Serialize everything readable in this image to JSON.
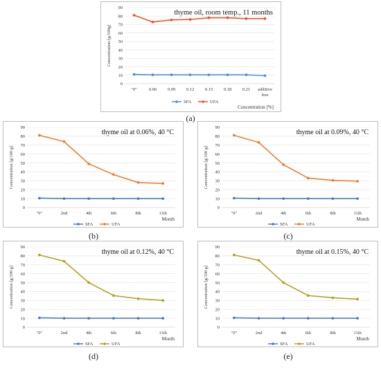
{
  "captions": [
    "(a)",
    "(b)",
    "(c)",
    "(d)",
    "(e)"
  ],
  "chart_data": [
    {
      "type": "line",
      "title": "thyme oil, room temp., 11 months",
      "ylabel": "Concentration [g/100g]",
      "xlabel": "Concentration [%]",
      "ylim": [
        0,
        90
      ],
      "yticks": [
        "0",
        "10",
        "20",
        "30",
        "40",
        "50",
        "60",
        "70",
        "80",
        "90"
      ],
      "categories": [
        "\"0\"",
        "0.06",
        "0.09",
        "0.12",
        "0.15",
        "0.18",
        "0.21",
        "additive free"
      ],
      "series": [
        {
          "name": "SFA",
          "color": "#4a90d9",
          "values": [
            11,
            10.5,
            10.5,
            10.5,
            10.5,
            10.5,
            10.5,
            9.5
          ]
        },
        {
          "name": "UFA",
          "color": "#e8542a",
          "values": [
            81,
            73,
            75.5,
            76,
            78,
            78,
            77,
            77
          ]
        }
      ],
      "legend": "bottom"
    },
    {
      "type": "line",
      "title": "thyme oil at 0.06%, 40 °C",
      "ylabel": "Concentration [g/100 g]",
      "xlabel": "Month",
      "ylim": [
        0,
        90
      ],
      "yticks": [
        "0",
        "10",
        "20",
        "30",
        "40",
        "50",
        "60",
        "70",
        "80",
        "90"
      ],
      "categories": [
        "\"0\"",
        "2nd",
        "4th",
        "6th",
        "8th",
        "11th"
      ],
      "series": [
        {
          "name": "SFA",
          "color": "#4a7cc7",
          "values": [
            10.5,
            10,
            10,
            10,
            10,
            10
          ]
        },
        {
          "name": "UFA",
          "color": "#ed7d31",
          "values": [
            81,
            74,
            49,
            37,
            28,
            27
          ]
        }
      ],
      "legend": "bottom"
    },
    {
      "type": "line",
      "title": "thyme oil at 0.09%, 40 °C",
      "ylabel": "Concentration [g/100 g]",
      "xlabel": "Month",
      "ylim": [
        0,
        90
      ],
      "yticks": [
        "0",
        "10",
        "20",
        "30",
        "40",
        "50",
        "60",
        "70",
        "80",
        "90"
      ],
      "categories": [
        "\"0\"",
        "2nd",
        "4th",
        "6th",
        "8th",
        "11th"
      ],
      "series": [
        {
          "name": "SFA",
          "color": "#4a7cc7",
          "values": [
            10.5,
            10,
            10,
            10,
            10,
            10
          ]
        },
        {
          "name": "UFA",
          "color": "#ed7d31",
          "values": [
            81,
            73,
            48,
            33,
            30.5,
            29.5
          ]
        }
      ],
      "legend": "bottom"
    },
    {
      "type": "line",
      "title": "thyme oil at 0.12%, 40 °C",
      "ylabel": "Concentration [g/100 g]",
      "xlabel": "Month",
      "ylim": [
        0,
        90
      ],
      "yticks": [
        "0",
        "10",
        "20",
        "30",
        "40",
        "50",
        "60",
        "70",
        "80",
        "90"
      ],
      "categories": [
        "\"0\"",
        "2nd",
        "4th",
        "6th",
        "8th",
        "11th"
      ],
      "series": [
        {
          "name": "SFA",
          "color": "#4a7cc7",
          "values": [
            10.5,
            10,
            10,
            10,
            10,
            10
          ]
        },
        {
          "name": "UFA",
          "color": "#b5a022",
          "values": [
            81,
            74,
            50,
            35.5,
            32,
            30
          ]
        }
      ],
      "legend": "bottom"
    },
    {
      "type": "line",
      "title": "thyme oil at 0.15%, 40 °C",
      "ylabel": "Concentration [g/100 g]",
      "xlabel": "Month",
      "ylim": [
        0,
        90
      ],
      "yticks": [
        "0",
        "10",
        "20",
        "30",
        "40",
        "50",
        "60",
        "70",
        "80",
        "90"
      ],
      "categories": [
        "\"0\"",
        "2nd",
        "4th",
        "6th",
        "8th",
        "11th"
      ],
      "series": [
        {
          "name": "SFA",
          "color": "#4a7cc7",
          "values": [
            10.5,
            10,
            10,
            10,
            10,
            10
          ]
        },
        {
          "name": "UFA",
          "color": "#b5a022",
          "values": [
            81,
            75,
            50,
            35.5,
            33,
            31.5
          ]
        }
      ],
      "legend": "bottom"
    }
  ]
}
